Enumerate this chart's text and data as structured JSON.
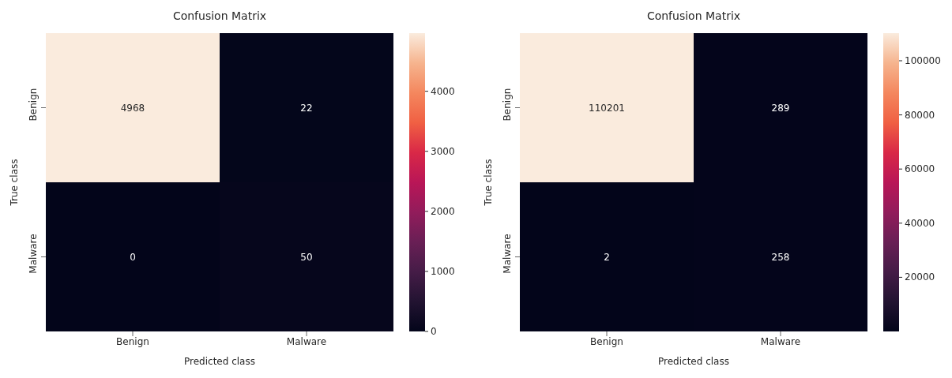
{
  "chart_data": [
    {
      "type": "heatmap",
      "title": "Confusion Matrix",
      "xlabel": "Predicted class",
      "ylabel": "True class",
      "categories": [
        "Benign",
        "Malware"
      ],
      "y_categories": [
        "Benign",
        "Malware"
      ],
      "cells": [
        [
          4968,
          22
        ],
        [
          0,
          50
        ]
      ],
      "clim": [
        0,
        4968
      ],
      "cticks": [
        0,
        1000,
        2000,
        3000,
        4000
      ],
      "data_labels": true
    },
    {
      "type": "heatmap",
      "title": "Confusion Matrix",
      "xlabel": "Predicted class",
      "ylabel": "True class",
      "categories": [
        "Benign",
        "Malware"
      ],
      "y_categories": [
        "Benign",
        "Malware"
      ],
      "cells": [
        [
          110201,
          289
        ],
        [
          2,
          258
        ]
      ],
      "clim": [
        2,
        110201
      ],
      "cticks": [
        20000,
        40000,
        60000,
        80000,
        100000
      ],
      "data_labels": true
    }
  ]
}
